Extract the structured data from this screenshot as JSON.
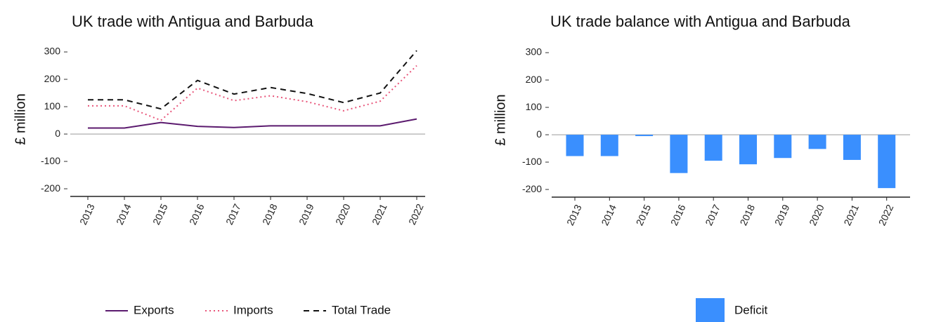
{
  "chart_data": [
    {
      "type": "line",
      "title": "UK trade with Antigua and Barbuda",
      "y_label": "£ million",
      "categories": [
        "2013",
        "2014",
        "2015",
        "2016",
        "2017",
        "2018",
        "2019",
        "2020",
        "2021",
        "2022"
      ],
      "series": [
        {
          "name": "Exports",
          "color": "#5b1a6e",
          "style": "solid",
          "values": [
            22,
            22,
            42,
            28,
            24,
            30,
            30,
            30,
            30,
            55
          ]
        },
        {
          "name": "Imports",
          "color": "#e8557a",
          "style": "dotted",
          "values": [
            103,
            103,
            50,
            168,
            122,
            140,
            118,
            85,
            120,
            250
          ]
        },
        {
          "name": "Total Trade",
          "color": "#111111",
          "style": "dashed",
          "values": [
            125,
            125,
            92,
            196,
            146,
            170,
            148,
            115,
            150,
            305
          ]
        }
      ],
      "ylim": [
        -228,
        336
      ],
      "yticks": [
        -200,
        -100,
        0,
        100,
        200,
        300
      ]
    },
    {
      "type": "bar",
      "title": "UK trade balance with Antigua and Barbuda",
      "y_label": "£ million",
      "categories": [
        "2013",
        "2014",
        "2015",
        "2016",
        "2017",
        "2018",
        "2019",
        "2020",
        "2021",
        "2022"
      ],
      "series": [
        {
          "name": "Deficit",
          "color": "#3a8ffe",
          "values": [
            -78,
            -78,
            -5,
            -140,
            -95,
            -108,
            -85,
            -52,
            -92,
            -195
          ]
        }
      ],
      "ylim": [
        -228,
        336
      ],
      "yticks": [
        -200,
        -100,
        0,
        100,
        200,
        300
      ]
    }
  ]
}
